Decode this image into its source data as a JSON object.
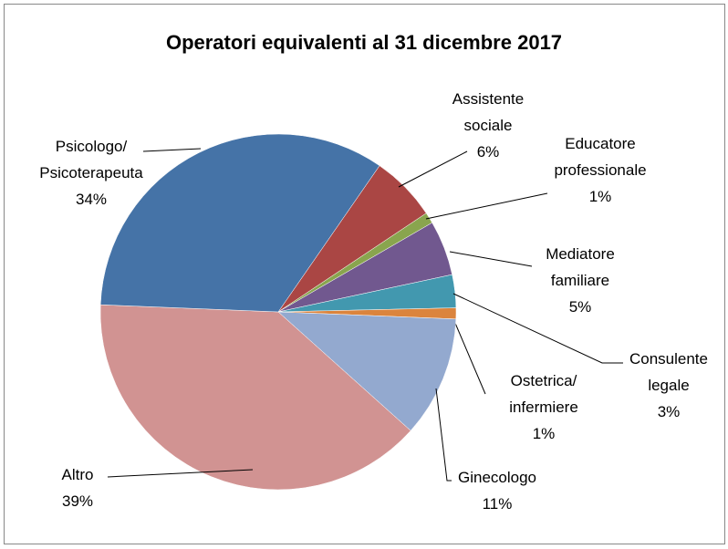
{
  "chart_data": {
    "type": "pie",
    "title": "Operatori equivalenti al 31 dicembre 2017",
    "categories": [
      "Assistente sociale",
      "Educatore professionale",
      "Mediatore familiare",
      "Consulente legale",
      "Ostetrica/ infermiere",
      "Ginecologo",
      "Altro",
      "Psicologo/ Psicoterapeuta"
    ],
    "values": [
      6,
      1,
      5,
      3,
      1,
      11,
      39,
      34
    ],
    "value_labels": [
      "6%",
      "1%",
      "5%",
      "3%",
      "1%",
      "11%",
      "39%",
      "34%"
    ],
    "colors": [
      "#aa4644",
      "#89a54e",
      "#71588f",
      "#4298af",
      "#db843d",
      "#93a9cf",
      "#d19392",
      "#4573a7"
    ]
  }
}
